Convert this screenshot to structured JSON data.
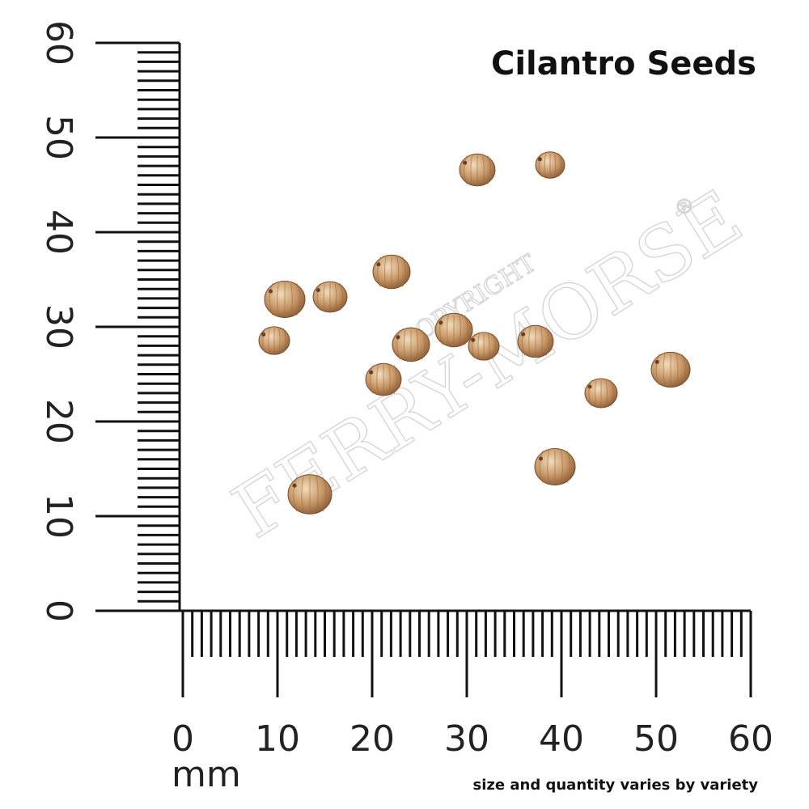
{
  "title": "Cilantro Seeds",
  "ruler": {
    "vertical_labels": [
      0,
      10,
      20,
      30,
      40,
      50,
      60
    ],
    "horizontal_labels": [
      0,
      10,
      20,
      30,
      40,
      50,
      60
    ],
    "unit": "mm"
  },
  "note": "size and quantity varies by variety",
  "watermark": {
    "top": "COPYRIGHT",
    "brand": "FERRY-MORSE",
    "mark": "®"
  }
}
